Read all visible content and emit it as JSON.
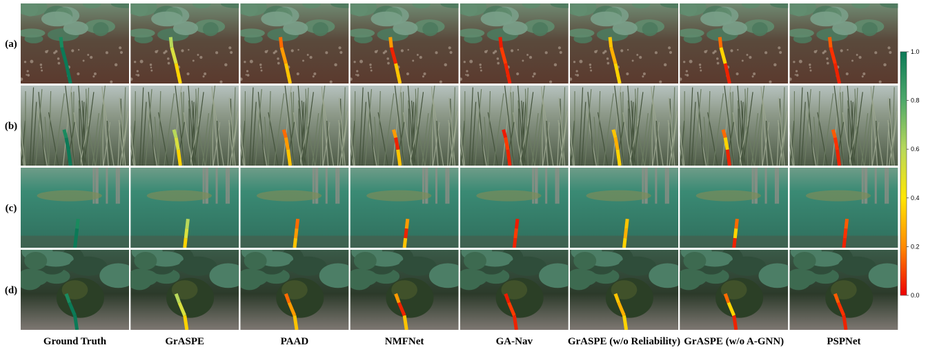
{
  "row_labels": [
    "(a)",
    "(b)",
    "(c)",
    "(d)"
  ],
  "column_labels": [
    "Ground Truth",
    "GrASPE",
    "PAAD",
    "NMFNet",
    "GA-Nav",
    "GrASPE (w/o Reliability)",
    "GrASPE (w/o A-GNN)",
    "PSPNet"
  ],
  "colorbar": {
    "lim": [
      0,
      1
    ],
    "ticks": [
      {
        "value": 1,
        "label": "1.0"
      },
      0.8,
      0.6,
      0.4,
      0.2,
      {
        "value": 0,
        "label": "0.0"
      }
    ]
  }
}
